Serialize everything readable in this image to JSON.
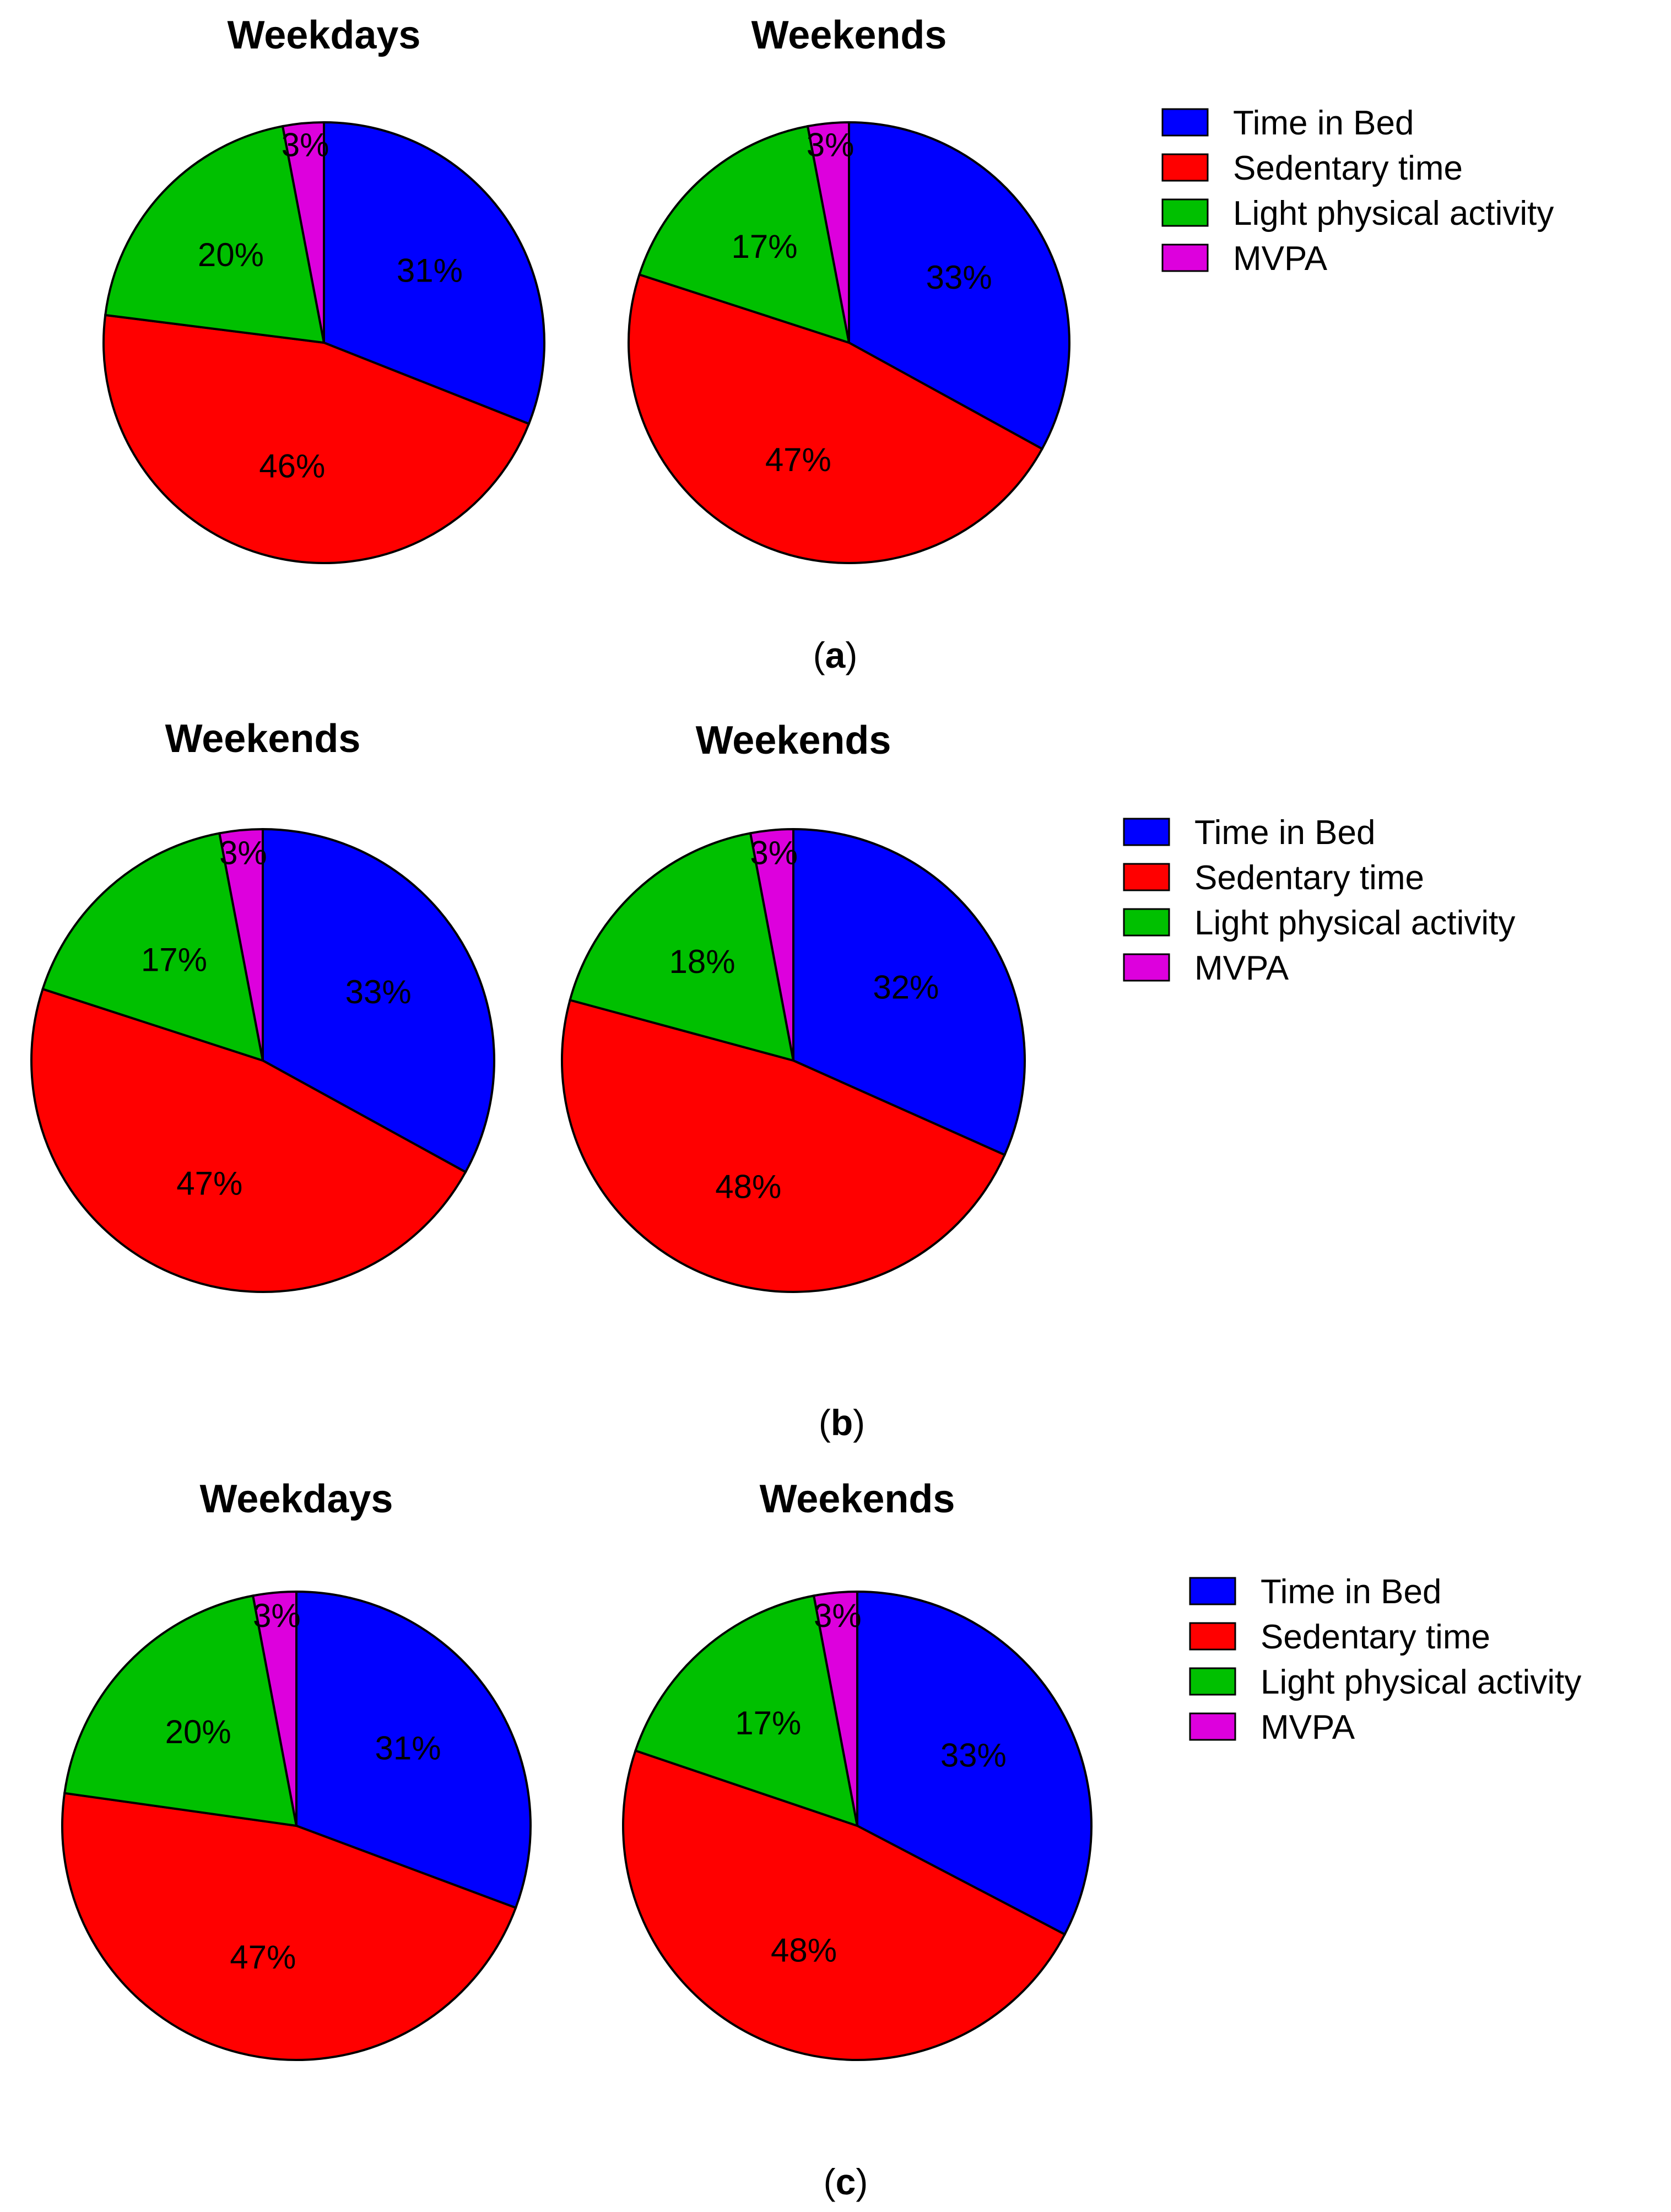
{
  "colors": {
    "time_in_bed": "#0000ff",
    "sedentary": "#ff0000",
    "light_pa": "#00c000",
    "mvpa": "#dd00dd"
  },
  "legend": [
    {
      "label": "Time in Bed",
      "color": "#0000ff"
    },
    {
      "label": "Sedentary time",
      "color": "#ff0000"
    },
    {
      "label": "Light physical activity",
      "color": "#00c000"
    },
    {
      "label": "MVPA",
      "color": "#dd00dd"
    }
  ],
  "panels": [
    {
      "caption_open": "(",
      "caption_letter": "a",
      "caption_close": ")"
    },
    {
      "caption_open": "(",
      "caption_letter": "b",
      "caption_close": ")"
    },
    {
      "caption_open": "(",
      "caption_letter": "c",
      "caption_close": ")"
    }
  ],
  "chart_data": [
    {
      "type": "pie",
      "panel": "a",
      "title": "Weekdays",
      "categories": [
        "Time in Bed",
        "Sedentary time",
        "Light physical activity",
        "MVPA"
      ],
      "values": [
        31,
        46,
        20,
        3
      ],
      "labels": [
        "31%",
        "46%",
        "20%",
        "3%"
      ],
      "start": "12 o'clock",
      "direction": "clockwise",
      "legend": "right"
    },
    {
      "type": "pie",
      "panel": "a",
      "title": "Weekends",
      "categories": [
        "Time in Bed",
        "Sedentary time",
        "Light physical activity",
        "MVPA"
      ],
      "values": [
        33,
        47,
        17,
        3
      ],
      "labels": [
        "33%",
        "47%",
        "17%",
        "3%"
      ],
      "start": "12 o'clock",
      "direction": "clockwise",
      "legend": "right"
    },
    {
      "type": "pie",
      "panel": "b",
      "title": "Weekends",
      "categories": [
        "Time in Bed",
        "Sedentary time",
        "Light physical activity",
        "MVPA"
      ],
      "values": [
        33,
        47,
        17,
        3
      ],
      "labels": [
        "33%",
        "47%",
        "17%",
        "3%"
      ],
      "start": "12 o'clock",
      "direction": "clockwise",
      "legend": "right"
    },
    {
      "type": "pie",
      "panel": "b",
      "title": "Weekends",
      "categories": [
        "Time in Bed",
        "Sedentary time",
        "Light physical activity",
        "MVPA"
      ],
      "values": [
        32,
        48,
        18,
        3
      ],
      "labels": [
        "32%",
        "48%",
        "18%",
        "3%"
      ],
      "start": "12 o'clock",
      "direction": "clockwise",
      "legend": "right"
    },
    {
      "type": "pie",
      "panel": "c",
      "title": "Weekdays",
      "categories": [
        "Time in Bed",
        "Sedentary time",
        "Light physical activity",
        "MVPA"
      ],
      "values": [
        31,
        47,
        20,
        3
      ],
      "labels": [
        "31%",
        "47%",
        "20%",
        "3%"
      ],
      "start": "12 o'clock",
      "direction": "clockwise",
      "legend": "right"
    },
    {
      "type": "pie",
      "panel": "c",
      "title": "Weekends",
      "categories": [
        "Time in Bed",
        "Sedentary time",
        "Light physical activity",
        "MVPA"
      ],
      "values": [
        33,
        48,
        17,
        3
      ],
      "labels": [
        "33%",
        "48%",
        "17%",
        "3%"
      ],
      "start": "12 o'clock",
      "direction": "clockwise",
      "legend": "right"
    }
  ]
}
